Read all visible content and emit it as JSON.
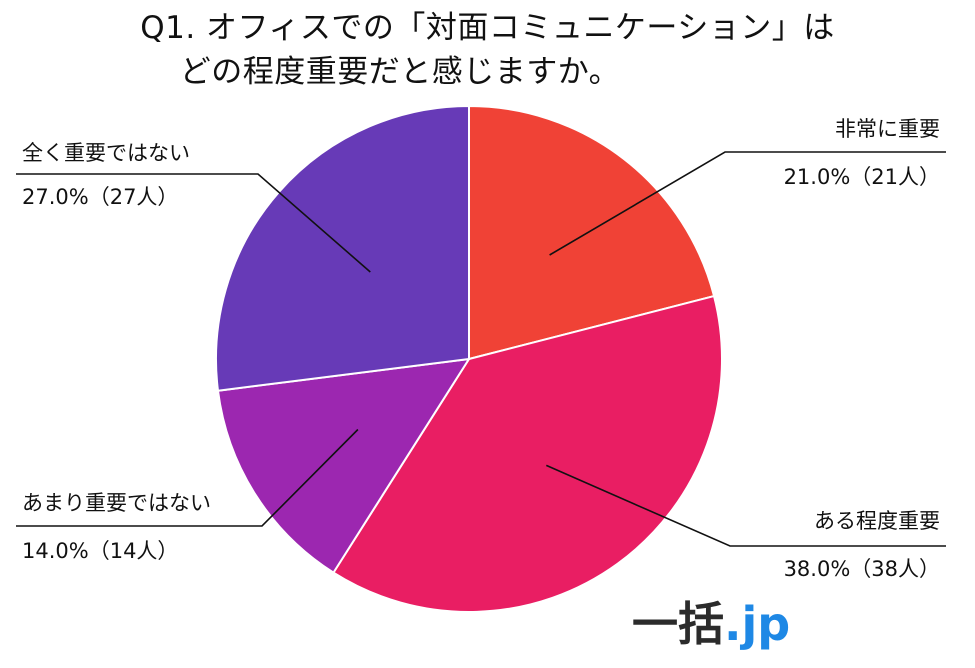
{
  "title": {
    "line1": "Q1. オフィスでの「対面コミュニケーション」は",
    "line2": "どの程度重要だと感じますか。"
  },
  "logo": {
    "kanji": "一括",
    "domain": ".jp"
  },
  "chart_data": {
    "type": "pie",
    "title": "Q1. オフィスでの「対面コミュニケーション」は どの程度重要だと感じますか。",
    "start": "12 o'clock",
    "direction": "clockwise",
    "slices": [
      {
        "label": "非常に重要",
        "value": 21.0,
        "count": 21,
        "value_text": "21.0%（21人）",
        "color": "#f04236"
      },
      {
        "label": "ある程度重要",
        "value": 38.0,
        "count": 38,
        "value_text": "38.0%（38人）",
        "color": "#e91e63"
      },
      {
        "label": "あまり重要ではない",
        "value": 14.0,
        "count": 14,
        "value_text": "14.0%（14人）",
        "color": "#9c27b0"
      },
      {
        "label": "全く重要ではない",
        "value": 27.0,
        "count": 27,
        "value_text": "27.0%（27人）",
        "color": "#673ab7"
      }
    ]
  }
}
